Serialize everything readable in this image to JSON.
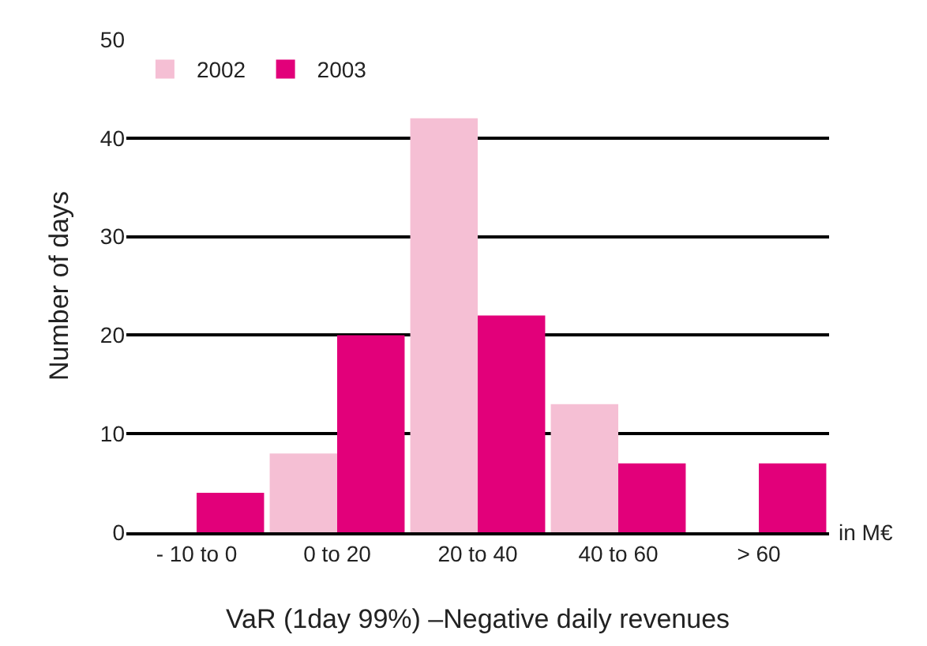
{
  "chart_data": {
    "type": "bar",
    "xlabel": "VaR (1day 99%) –Negative daily revenues",
    "ylabel": "Number of days",
    "categories": [
      "- 10 to 0",
      "0 to 20",
      "20 to 40",
      "40 to 60",
      "> 60"
    ],
    "series": [
      {
        "name": "2002",
        "color": "#f5bfd4",
        "values": [
          null,
          8,
          42,
          13,
          null
        ]
      },
      {
        "name": "2003",
        "color": "#e2007a",
        "values": [
          4,
          20,
          22,
          7,
          7
        ]
      }
    ],
    "ylim": [
      0,
      50
    ],
    "yticks": [
      0,
      10,
      20,
      30,
      40,
      50
    ],
    "grid": "y",
    "legend": "top left",
    "annotations": [
      "in M€"
    ]
  }
}
